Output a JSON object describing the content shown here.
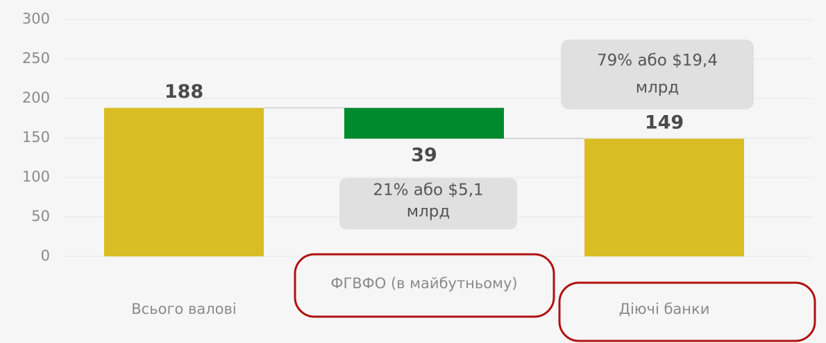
{
  "chart_data": {
    "type": "waterfall",
    "categories": [
      "Всього валові",
      "ФГВФО (в майбутньому)",
      "Діючі банки"
    ],
    "values": [
      188,
      39,
      149
    ],
    "kinds": [
      "total",
      "decrease",
      "total"
    ],
    "colors": [
      "#d9bd24",
      "#008a2e",
      "#d9bd24"
    ],
    "ylim": [
      0,
      300
    ],
    "yticks": [
      0,
      50,
      100,
      150,
      200,
      250,
      300
    ],
    "grid": true,
    "annotations": [
      [
        "21% або $5,1",
        "млрд"
      ],
      [
        "79% або $19,4",
        "млрд"
      ]
    ]
  }
}
